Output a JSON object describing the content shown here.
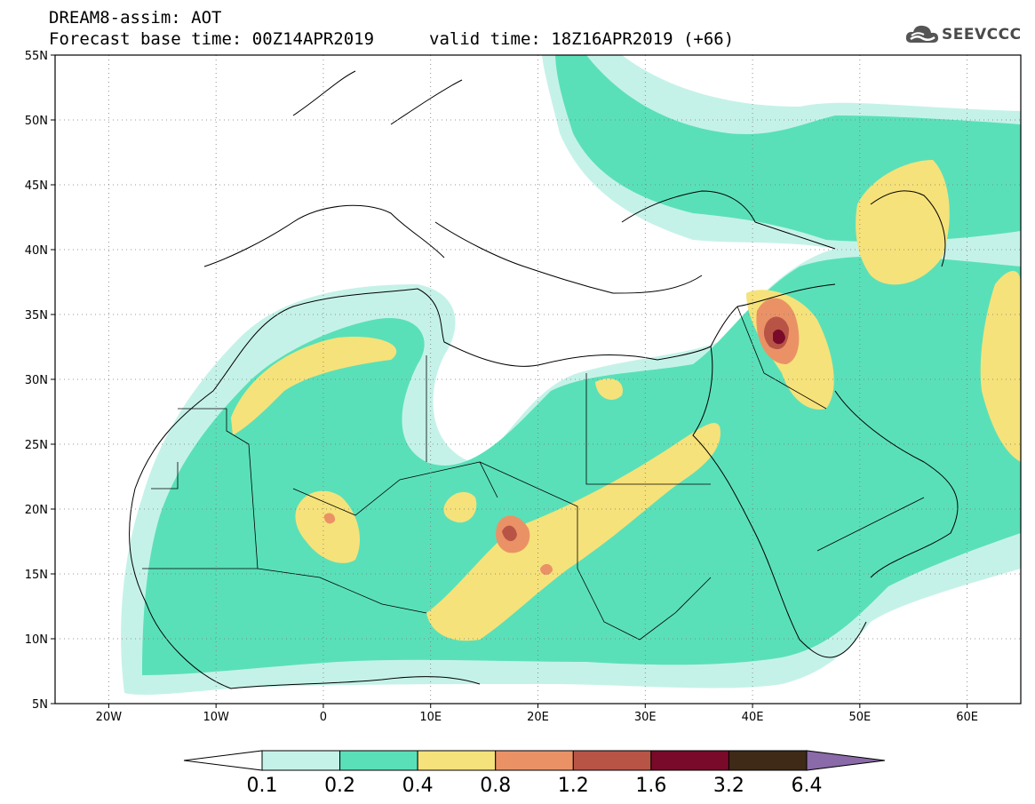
{
  "header": {
    "title_line1": "DREAM8-assim: AOT",
    "title_line2": "Forecast base time: 00Z14APR2019",
    "valid_time": "valid time: 18Z16APR2019 (+66)"
  },
  "logo": {
    "text": "SEEVCCC",
    "icon": "cloud-logo-icon"
  },
  "map": {
    "projection": "lat-lon",
    "lon_range": [
      -25,
      65
    ],
    "lat_range": [
      5,
      55
    ],
    "grid": true,
    "lat_ticks": [
      {
        "value": 55,
        "label": "55N"
      },
      {
        "value": 50,
        "label": "50N"
      },
      {
        "value": 45,
        "label": "45N"
      },
      {
        "value": 40,
        "label": "40N"
      },
      {
        "value": 35,
        "label": "35N"
      },
      {
        "value": 30,
        "label": "30N"
      },
      {
        "value": 25,
        "label": "25N"
      },
      {
        "value": 20,
        "label": "20N"
      },
      {
        "value": 15,
        "label": "15N"
      },
      {
        "value": 10,
        "label": "10N"
      },
      {
        "value": 5,
        "label": "5N"
      }
    ],
    "lon_ticks": [
      {
        "value": -20,
        "label": "20W"
      },
      {
        "value": -10,
        "label": "10W"
      },
      {
        "value": 0,
        "label": "0"
      },
      {
        "value": 10,
        "label": "10E"
      },
      {
        "value": 20,
        "label": "20E"
      },
      {
        "value": 30,
        "label": "30E"
      },
      {
        "value": 40,
        "label": "40E"
      },
      {
        "value": 50,
        "label": "50E"
      },
      {
        "value": 60,
        "label": "60E"
      }
    ]
  },
  "colorbar": {
    "colors": [
      "#ffffff",
      "#c5f2e8",
      "#5ae0b8",
      "#f6e27a",
      "#ea9266",
      "#b85446",
      "#7a0a2a",
      "#3e2a16",
      "#8a6aa8"
    ],
    "labels": [
      "0.1",
      "0.2",
      "0.4",
      "0.8",
      "1.2",
      "1.6",
      "3.2",
      "6.4"
    ]
  }
}
